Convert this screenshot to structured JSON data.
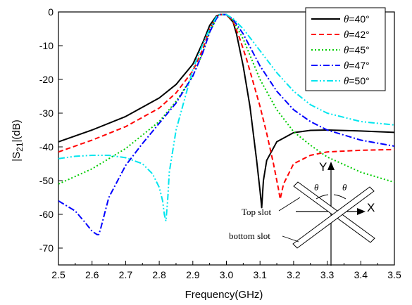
{
  "chart_data": {
    "type": "line",
    "xlabel": "Frequency(GHz)",
    "ylabel_main": "|S",
    "ylabel_sub": "21",
    "ylabel_tail": "|(dB)",
    "xlim": [
      2.5,
      3.5
    ],
    "ylim": [
      -75,
      0
    ],
    "xticks": [
      2.5,
      2.6,
      2.7,
      2.8,
      2.9,
      3.0,
      3.1,
      3.2,
      3.3,
      3.4,
      3.5
    ],
    "xtick_labels": [
      "2.5",
      "2.6",
      "2.7",
      "2.8",
      "2.9",
      "3.0",
      "3.1",
      "3.2",
      "3.3",
      "3.4",
      "3.5"
    ],
    "yticks": [
      0,
      -10,
      -20,
      -30,
      -40,
      -50,
      -60,
      -70
    ],
    "ytick_labels": [
      "0",
      "-10",
      "-20",
      "-30",
      "-40",
      "-50",
      "-60",
      "-70"
    ],
    "grid": false,
    "legend_position": "top-right",
    "series": [
      {
        "name": "=40°",
        "symbol": "θ",
        "color": "#000000",
        "dash": "solid",
        "x": [
          2.5,
          2.6,
          2.7,
          2.8,
          2.85,
          2.9,
          2.93,
          2.95,
          2.97,
          2.98,
          3.0,
          3.02,
          3.03,
          3.05,
          3.07,
          3.09,
          3.1,
          3.105,
          3.11,
          3.12,
          3.15,
          3.2,
          3.25,
          3.3,
          3.4,
          3.5
        ],
        "y": [
          -38.5,
          -35,
          -31,
          -25.5,
          -21.5,
          -15.5,
          -9,
          -4,
          -1.2,
          -0.8,
          -0.8,
          -3,
          -6.5,
          -16,
          -28,
          -44,
          -53,
          -58,
          -50,
          -44,
          -38.5,
          -35.8,
          -35.1,
          -35,
          -35.3,
          -35.7
        ]
      },
      {
        "name": "=42°",
        "symbol": "θ",
        "color": "#ff0000",
        "dash": "dashed",
        "x": [
          2.5,
          2.6,
          2.7,
          2.8,
          2.85,
          2.9,
          2.93,
          2.95,
          2.97,
          2.98,
          3.0,
          3.02,
          3.04,
          3.06,
          3.08,
          3.1,
          3.12,
          3.14,
          3.155,
          3.16,
          3.17,
          3.2,
          3.25,
          3.3,
          3.4,
          3.5
        ],
        "y": [
          -41.5,
          -38,
          -34,
          -28.5,
          -24,
          -17.5,
          -11,
          -5,
          -1.5,
          -0.8,
          -0.8,
          -2.8,
          -8,
          -14,
          -21,
          -28,
          -36,
          -45,
          -52.5,
          -55.5,
          -51,
          -45,
          -42.5,
          -41.5,
          -41,
          -40.8
        ]
      },
      {
        "name": "=45°",
        "symbol": "θ",
        "color": "#00cc00",
        "dash": "dotted",
        "x": [
          2.5,
          2.6,
          2.7,
          2.8,
          2.85,
          2.9,
          2.93,
          2.95,
          2.97,
          2.98,
          3.0,
          3.02,
          3.05,
          3.1,
          3.15,
          3.2,
          3.25,
          3.3,
          3.4,
          3.5
        ],
        "y": [
          -51,
          -46.5,
          -40.5,
          -32.5,
          -26.5,
          -19,
          -12,
          -6,
          -2,
          -0.8,
          -0.8,
          -2.5,
          -8,
          -20,
          -29,
          -35.5,
          -39.5,
          -43,
          -47.5,
          -50.5
        ]
      },
      {
        "name": "=47°",
        "symbol": "θ",
        "color": "#0000ff",
        "dash": "dashdot",
        "x": [
          2.5,
          2.55,
          2.58,
          2.6,
          2.615,
          2.62,
          2.625,
          2.65,
          2.7,
          2.75,
          2.8,
          2.85,
          2.9,
          2.93,
          2.95,
          2.97,
          2.98,
          3.0,
          3.02,
          3.05,
          3.1,
          3.15,
          3.2,
          3.25,
          3.3,
          3.4,
          3.5
        ],
        "y": [
          -56,
          -59,
          -62.5,
          -65,
          -66,
          -66,
          -64.5,
          -55,
          -45.5,
          -39,
          -33,
          -27,
          -19,
          -12,
          -6,
          -2,
          -0.8,
          -0.8,
          -2.2,
          -6.5,
          -16,
          -23.5,
          -29,
          -32.5,
          -35,
          -38,
          -39.8
        ]
      },
      {
        "name": "=50°",
        "symbol": "θ",
        "color": "#00e5ee",
        "dash": "dashdotdot",
        "x": [
          2.5,
          2.55,
          2.6,
          2.65,
          2.7,
          2.75,
          2.78,
          2.8,
          2.81,
          2.815,
          2.82,
          2.825,
          2.83,
          2.85,
          2.9,
          2.93,
          2.95,
          2.97,
          2.98,
          3.0,
          3.02,
          3.05,
          3.1,
          3.15,
          3.2,
          3.25,
          3.3,
          3.4,
          3.5
        ],
        "y": [
          -43.5,
          -42.8,
          -42.5,
          -42.5,
          -43.2,
          -45,
          -48,
          -52,
          -56,
          -60,
          -62,
          -56,
          -47.5,
          -35,
          -17,
          -9.5,
          -5,
          -1.5,
          -0.8,
          -0.8,
          -2,
          -5,
          -11.5,
          -18,
          -23.5,
          -27.5,
          -30,
          -32.5,
          -33.5
        ]
      }
    ],
    "inset": {
      "axis_y": "Y",
      "axis_x": "X",
      "angle_left": "θ",
      "angle_right": "θ",
      "top_slot": "Top slot",
      "bottom_slot": "bottom slot"
    }
  }
}
